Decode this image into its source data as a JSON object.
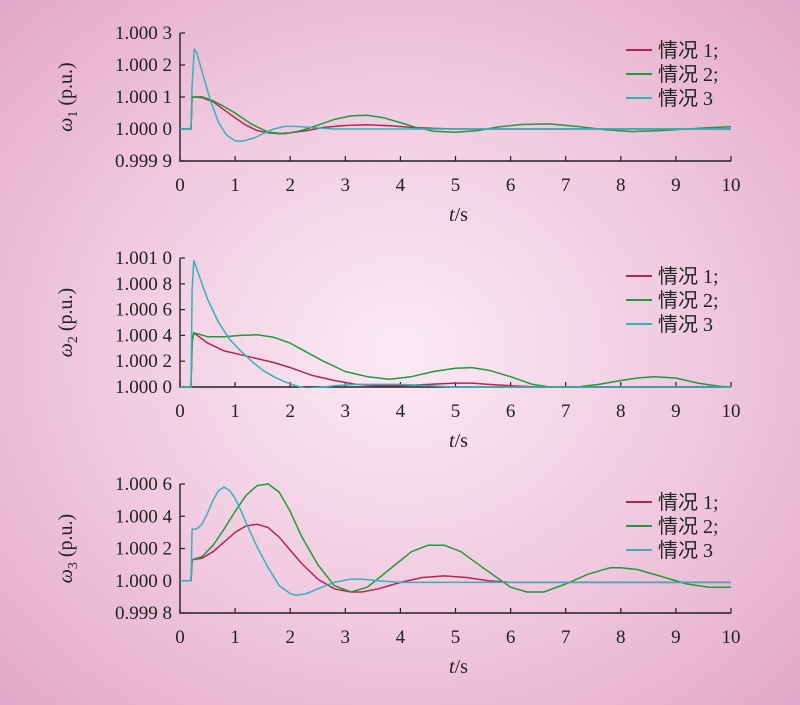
{
  "chart_data": [
    {
      "type": "line",
      "ylabel": "ω1 (p.u.)",
      "ylabel_symbol": "ω",
      "ylabel_sub": "1",
      "ylabel_unit": " (p.u.)",
      "xlabel": "t/s",
      "xlabel_var": "t",
      "xlabel_unit": "/s",
      "xlim": [
        0,
        10
      ],
      "ylim": [
        0.9999,
        1.0003
      ],
      "xticks": [
        "0",
        "1",
        "2",
        "3",
        "4",
        "5",
        "6",
        "7",
        "8",
        "9",
        "10"
      ],
      "yticks": [
        {
          "value": 1.0003,
          "label": "1.000 3"
        },
        {
          "value": 1.0002,
          "label": "1.000 2"
        },
        {
          "value": 1.0001,
          "label": "1.000 1"
        },
        {
          "value": 1.0,
          "label": "1.000 0"
        },
        {
          "value": 0.9999,
          "label": "0.999 9"
        }
      ],
      "legend_position": "top-right",
      "series": [
        {
          "name": "情况 1;",
          "color": "#b5264e",
          "x": [
            0,
            0.2,
            0.22,
            0.25,
            0.4,
            0.6,
            0.8,
            1.0,
            1.2,
            1.4,
            1.6,
            1.8,
            2.0,
            2.3,
            2.6,
            3.0,
            3.4,
            3.8,
            4.2,
            4.6,
            5,
            6,
            7,
            8,
            9,
            10
          ],
          "y": [
            1.0,
            1.0,
            1.0001,
            1.0001,
            1.000098,
            1.000085,
            1.00006,
            1.000035,
            1.000012,
            0.999995,
            0.999988,
            0.999985,
            0.999988,
            0.999995,
            1.000005,
            1.000011,
            1.000013,
            1.00001,
            1.000005,
            1.000002,
            1.0,
            1.0,
            1.0,
            1.0,
            1.0,
            1.0
          ]
        },
        {
          "name": "情况 2;",
          "color": "#1f9a3c",
          "x": [
            0,
            0.2,
            0.22,
            0.25,
            0.4,
            0.6,
            0.8,
            1.0,
            1.3,
            1.6,
            1.9,
            2.2,
            2.5,
            2.8,
            3.1,
            3.4,
            3.7,
            4.0,
            4.3,
            4.6,
            5.0,
            5.4,
            5.8,
            6.2,
            6.7,
            7.2,
            7.7,
            8.2,
            8.7,
            9.2,
            9.7,
            10
          ],
          "y": [
            1.0,
            1.0,
            1.0001,
            1.0001,
            1.000101,
            1.000088,
            1.00007,
            1.00005,
            1.000015,
            0.99999,
            0.999985,
            0.999995,
            1.000012,
            1.00003,
            1.000041,
            1.000043,
            1.000035,
            1.00002,
            1.000004,
            0.999993,
            0.99999,
            0.999995,
            1.000007,
            1.000014,
            1.000016,
            1.000008,
            0.999998,
            0.999992,
            0.999995,
            1.0,
            1.000005,
            1.000007
          ]
        },
        {
          "name": "情况 3",
          "color": "#33b3b8",
          "x": [
            0,
            0.2,
            0.22,
            0.26,
            0.3,
            0.4,
            0.55,
            0.7,
            0.85,
            1.0,
            1.1,
            1.2,
            1.35,
            1.5,
            1.7,
            1.9,
            2.1,
            2.3,
            2.5,
            2.8,
            3.2,
            4,
            5,
            6,
            7,
            8,
            9,
            10
          ],
          "y": [
            1.0,
            1.0,
            1.00014,
            1.00025,
            1.00024,
            1.00018,
            1.00009,
            1.00002,
            0.99998,
            0.999963,
            0.999962,
            0.999965,
            0.999972,
            0.999985,
            1.0,
            1.000008,
            1.000008,
            1.000006,
            1.000003,
            1.0,
            1.0,
            1.0,
            1.0,
            1.0,
            1.0,
            1.0,
            1.0,
            1.0
          ]
        }
      ]
    },
    {
      "type": "line",
      "ylabel": "ω2 (p.u.)",
      "ylabel_symbol": "ω",
      "ylabel_sub": "2",
      "ylabel_unit": " (p.u.)",
      "xlabel": "t/s",
      "xlabel_var": "t",
      "xlabel_unit": "/s",
      "xlim": [
        0,
        10
      ],
      "ylim": [
        1.0,
        1.001
      ],
      "xticks": [
        "0",
        "1",
        "2",
        "3",
        "4",
        "5",
        "6",
        "7",
        "8",
        "9",
        "10"
      ],
      "yticks": [
        {
          "value": 1.001,
          "label": "1.001 0"
        },
        {
          "value": 1.0008,
          "label": "1.000 8"
        },
        {
          "value": 1.0006,
          "label": "1.000 6"
        },
        {
          "value": 1.0004,
          "label": "1.000 4"
        },
        {
          "value": 1.0002,
          "label": "1.000 2"
        },
        {
          "value": 1.0,
          "label": "1.000 0"
        }
      ],
      "legend_position": "top-right",
      "series": [
        {
          "name": "情况 1;",
          "color": "#b5264e",
          "x": [
            0,
            0.2,
            0.22,
            0.25,
            0.5,
            0.8,
            1.1,
            1.4,
            1.7,
            2.0,
            2.4,
            2.8,
            3.2,
            3.6,
            4.0,
            4.5,
            5.0,
            5.3,
            5.6,
            6.0,
            6.5,
            7,
            8,
            9,
            10
          ],
          "y": [
            1.0,
            1.0,
            1.00035,
            1.00042,
            1.00034,
            1.00028,
            1.00025,
            1.00022,
            1.00019,
            1.00015,
            1.00009,
            1.00005,
            1.00002,
            1.00001,
            1.00001,
            1.00002,
            1.00003,
            1.00003,
            1.00002,
            1.00001,
            1.0,
            1.0,
            1.0,
            1.0,
            1.0
          ]
        },
        {
          "name": "情况 2;",
          "color": "#1f9a3c",
          "x": [
            0,
            0.2,
            0.22,
            0.25,
            0.5,
            0.8,
            1.1,
            1.4,
            1.7,
            2.0,
            2.3,
            2.6,
            3.0,
            3.4,
            3.8,
            4.2,
            4.6,
            5.0,
            5.3,
            5.6,
            6.0,
            6.4,
            6.8,
            7.2,
            7.6,
            8.0,
            8.3,
            8.6,
            9.0,
            9.4,
            9.8,
            10
          ],
          "y": [
            1.0,
            1.0,
            1.00035,
            1.00042,
            1.00039,
            1.00039,
            1.0004,
            1.000405,
            1.000385,
            1.00034,
            1.00027,
            1.0002,
            1.00012,
            1.00008,
            1.00006,
            1.00008,
            1.00012,
            1.000145,
            1.00015,
            1.00013,
            1.00008,
            1.00002,
            0.999995,
            1.0,
            1.00002,
            1.00005,
            1.00007,
            1.00008,
            1.00007,
            1.00003,
            1.000005,
            1.0
          ]
        },
        {
          "name": "情况 3",
          "color": "#33b3b8",
          "x": [
            0,
            0.2,
            0.22,
            0.25,
            0.3,
            0.4,
            0.5,
            0.7,
            0.9,
            1.1,
            1.3,
            1.5,
            1.7,
            1.9,
            2.1,
            2.3,
            2.5,
            2.8,
            3.2,
            3.6,
            4,
            5,
            6,
            7,
            8,
            9,
            10
          ],
          "y": [
            1.0,
            1.0,
            1.00075,
            1.00098,
            1.00092,
            1.0008,
            1.00068,
            1.0005,
            1.00037,
            1.00028,
            1.0002,
            1.00013,
            1.00008,
            1.00004,
            1.00001,
            0.99999,
            0.999995,
            1.00001,
            1.00002,
            1.00002,
            1.00002,
            1.0,
            1.0,
            1.0,
            1.0,
            1.0,
            1.0
          ]
        }
      ]
    },
    {
      "type": "line",
      "ylabel": "ω3 (p.u.)",
      "ylabel_symbol": "ω",
      "ylabel_sub": "3",
      "ylabel_unit": " (p.u.)",
      "xlabel": "t/s",
      "xlabel_var": "t",
      "xlabel_unit": "/s",
      "xlim": [
        0,
        10
      ],
      "ylim": [
        0.9998,
        1.0006
      ],
      "xticks": [
        "0",
        "1",
        "2",
        "3",
        "4",
        "5",
        "6",
        "7",
        "8",
        "9",
        "10"
      ],
      "yticks": [
        {
          "value": 1.0006,
          "label": "1.000 6"
        },
        {
          "value": 1.0004,
          "label": "1.000 4"
        },
        {
          "value": 1.0002,
          "label": "1.000 2"
        },
        {
          "value": 1.0,
          "label": "1.000 0"
        },
        {
          "value": 0.9998,
          "label": "0.999 8"
        }
      ],
      "legend_position": "top-right",
      "series": [
        {
          "name": "情况 1;",
          "color": "#b5264e",
          "x": [
            0,
            0.2,
            0.22,
            0.4,
            0.6,
            0.8,
            1.0,
            1.2,
            1.4,
            1.6,
            1.8,
            2.0,
            2.2,
            2.5,
            2.8,
            3.1,
            3.3,
            3.6,
            4.0,
            4.4,
            4.8,
            5.2,
            5.6,
            6.0,
            6.5,
            7,
            8,
            9,
            10
          ],
          "y": [
            1.0,
            1.0,
            1.00013,
            1.00014,
            1.00018,
            1.00024,
            1.0003,
            1.00034,
            1.00035,
            1.00033,
            1.00027,
            1.00019,
            1.00011,
            1.00001,
            0.99995,
            0.99993,
            0.99993,
            0.99995,
            0.99999,
            1.00002,
            1.00003,
            1.00002,
            1.0,
            0.99999,
            0.99999,
            0.99999,
            0.99999,
            0.99999,
            0.99999
          ]
        },
        {
          "name": "情况 2;",
          "color": "#1f9a3c",
          "x": [
            0,
            0.2,
            0.22,
            0.4,
            0.6,
            0.8,
            1.0,
            1.2,
            1.4,
            1.6,
            1.8,
            2.0,
            2.2,
            2.5,
            2.8,
            3.1,
            3.4,
            3.8,
            4.2,
            4.5,
            4.8,
            5.1,
            5.5,
            6.0,
            6.3,
            6.6,
            7.0,
            7.4,
            7.8,
            8.0,
            8.3,
            8.7,
            9.2,
            9.6,
            10
          ],
          "y": [
            1.0,
            1.0,
            1.00013,
            1.00015,
            1.00022,
            1.00032,
            1.00043,
            1.00053,
            1.00059,
            1.0006,
            1.00055,
            1.00043,
            1.00028,
            1.0001,
            0.99997,
            0.99993,
            0.99996,
            1.00007,
            1.00018,
            1.00022,
            1.00022,
            1.00018,
            1.00008,
            0.99996,
            0.99993,
            0.99993,
            0.99998,
            1.00004,
            1.00008,
            1.00008,
            1.00007,
            1.00003,
            0.99998,
            0.99996,
            0.99996
          ]
        },
        {
          "name": "情况 3",
          "color": "#33b3b8",
          "x": [
            0,
            0.2,
            0.22,
            0.3,
            0.4,
            0.5,
            0.6,
            0.7,
            0.8,
            0.9,
            1.0,
            1.1,
            1.2,
            1.4,
            1.6,
            1.8,
            2.0,
            2.1,
            2.3,
            2.5,
            2.8,
            3.1,
            3.3,
            3.6,
            4.0,
            5,
            6,
            7,
            8,
            9,
            10
          ],
          "y": [
            1.0,
            1.0,
            1.00032,
            1.00032,
            1.00035,
            1.00042,
            1.0005,
            1.00056,
            1.00058,
            1.00056,
            1.00051,
            1.00044,
            1.00036,
            1.00021,
            1.00008,
            0.99997,
            0.99992,
            0.99991,
            0.99992,
            0.99995,
            0.99999,
            1.00001,
            1.00001,
            1.0,
            0.99999,
            0.99999,
            0.99999,
            0.99999,
            0.99999,
            0.99999,
            0.99999
          ]
        }
      ]
    }
  ]
}
